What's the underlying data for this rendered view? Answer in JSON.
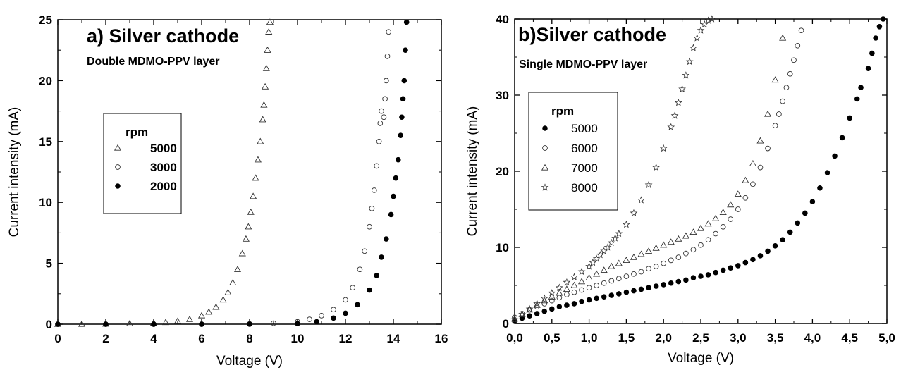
{
  "chart_data": [
    {
      "type": "scatter",
      "title": "a) Silver cathode",
      "subtitle": "Double MDMO-PPV layer",
      "xlabel": "Voltage (V)",
      "ylabel": "Current intensity (mA)",
      "xlim": [
        0,
        16
      ],
      "ylim": [
        0,
        25
      ],
      "xticks": [
        "0",
        "2",
        "4",
        "6",
        "8",
        "10",
        "12",
        "14",
        "16"
      ],
      "yticks": [
        "0",
        "5",
        "10",
        "15",
        "20",
        "25"
      ],
      "legend_title": "rpm",
      "legend_position": "center-left",
      "grid": false,
      "series": [
        {
          "name": "5000",
          "marker": "open-triangle",
          "x": [
            0.0,
            1.0,
            2.0,
            3.0,
            4.0,
            4.5,
            5.0,
            5.5,
            6.0,
            6.3,
            6.6,
            6.9,
            7.1,
            7.3,
            7.5,
            7.7,
            7.85,
            7.95,
            8.05,
            8.15,
            8.25,
            8.35,
            8.45,
            8.55,
            8.6,
            8.65,
            8.7,
            8.75,
            8.8,
            8.85
          ],
          "y": [
            0.0,
            0.0,
            0.02,
            0.05,
            0.1,
            0.15,
            0.25,
            0.4,
            0.7,
            1.0,
            1.4,
            2.0,
            2.6,
            3.4,
            4.5,
            5.8,
            7.0,
            8.0,
            9.2,
            10.5,
            12.0,
            13.5,
            15.0,
            16.8,
            18.0,
            19.5,
            21.0,
            22.5,
            24.0,
            24.8
          ]
        },
        {
          "name": "3000",
          "marker": "open-circle",
          "x": [
            0.0,
            2.0,
            4.0,
            6.0,
            8.0,
            9.0,
            10.0,
            10.5,
            11.0,
            11.5,
            12.0,
            12.3,
            12.6,
            12.8,
            13.0,
            13.1,
            13.2,
            13.3,
            13.4,
            13.45,
            13.5,
            13.6,
            13.65,
            13.7,
            13.75,
            13.8
          ],
          "y": [
            0.0,
            0.0,
            0.0,
            0.0,
            0.02,
            0.08,
            0.2,
            0.4,
            0.7,
            1.2,
            2.0,
            3.0,
            4.5,
            6.0,
            8.0,
            9.5,
            11.0,
            13.0,
            15.0,
            16.5,
            17.5,
            17.0,
            18.5,
            20.0,
            22.0,
            24.0
          ]
        },
        {
          "name": "2000",
          "marker": "filled-circle",
          "x": [
            0.0,
            2.0,
            4.0,
            6.0,
            8.0,
            10.0,
            10.8,
            11.5,
            12.0,
            12.5,
            13.0,
            13.3,
            13.5,
            13.7,
            13.9,
            14.0,
            14.1,
            14.2,
            14.3,
            14.35,
            14.4,
            14.45,
            14.5,
            14.55
          ],
          "y": [
            0.0,
            0.0,
            0.0,
            0.0,
            0.0,
            0.05,
            0.2,
            0.5,
            0.9,
            1.6,
            2.8,
            4.0,
            5.5,
            7.0,
            9.0,
            10.5,
            12.0,
            13.5,
            15.5,
            17.0,
            18.5,
            20.0,
            22.5,
            24.8
          ]
        }
      ]
    },
    {
      "type": "scatter",
      "title": "b)Silver cathode",
      "subtitle": "Single MDMO-PPV layer",
      "xlabel": "Voltage (V)",
      "ylabel": "Current intensity (mA)",
      "xlim": [
        0,
        5
      ],
      "ylim": [
        0,
        40
      ],
      "xticks": [
        "0,0",
        "0,5",
        "1,0",
        "1,5",
        "2,0",
        "2,5",
        "3,0",
        "3,5",
        "4,0",
        "4,5",
        "5,0"
      ],
      "yticks": [
        "0",
        "10",
        "20",
        "30",
        "40"
      ],
      "legend_title": "rpm",
      "legend_position": "center-left",
      "grid": false,
      "series": [
        {
          "name": "5000",
          "marker": "filled-circle",
          "x": [
            0.0,
            0.1,
            0.2,
            0.3,
            0.4,
            0.5,
            0.6,
            0.7,
            0.8,
            0.9,
            1.0,
            1.1,
            1.2,
            1.3,
            1.4,
            1.5,
            1.6,
            1.7,
            1.8,
            1.9,
            2.0,
            2.1,
            2.2,
            2.3,
            2.4,
            2.5,
            2.6,
            2.7,
            2.8,
            2.9,
            3.0,
            3.1,
            3.2,
            3.3,
            3.4,
            3.5,
            3.6,
            3.7,
            3.8,
            3.9,
            4.0,
            4.1,
            4.2,
            4.3,
            4.4,
            4.5,
            4.6,
            4.65,
            4.75,
            4.8,
            4.85,
            4.9,
            4.95
          ],
          "y": [
            0.3,
            0.7,
            1.0,
            1.3,
            1.6,
            1.9,
            2.2,
            2.4,
            2.6,
            2.9,
            3.1,
            3.3,
            3.5,
            3.7,
            3.9,
            4.1,
            4.3,
            4.5,
            4.7,
            4.9,
            5.1,
            5.3,
            5.5,
            5.7,
            6.0,
            6.2,
            6.4,
            6.7,
            7.0,
            7.3,
            7.6,
            8.0,
            8.4,
            8.9,
            9.5,
            10.2,
            11.0,
            12.0,
            13.2,
            14.5,
            16.0,
            17.8,
            19.8,
            22.0,
            24.4,
            27.0,
            29.5,
            31.0,
            33.5,
            35.5,
            37.5,
            39.0,
            40.0
          ]
        },
        {
          "name": "6000",
          "marker": "open-circle",
          "x": [
            0.0,
            0.1,
            0.2,
            0.3,
            0.4,
            0.5,
            0.6,
            0.7,
            0.8,
            0.9,
            1.0,
            1.1,
            1.2,
            1.3,
            1.4,
            1.5,
            1.6,
            1.7,
            1.8,
            1.9,
            2.0,
            2.1,
            2.2,
            2.3,
            2.4,
            2.5,
            2.6,
            2.7,
            2.8,
            2.9,
            3.0,
            3.1,
            3.2,
            3.3,
            3.4,
            3.5,
            3.55,
            3.6,
            3.65,
            3.7,
            3.75,
            3.8,
            3.85
          ],
          "y": [
            0.8,
            1.3,
            1.8,
            2.2,
            2.6,
            3.0,
            3.4,
            3.8,
            4.1,
            4.4,
            4.7,
            5.0,
            5.3,
            5.6,
            5.9,
            6.2,
            6.5,
            6.8,
            7.2,
            7.5,
            7.9,
            8.3,
            8.7,
            9.2,
            9.7,
            10.3,
            11.0,
            11.8,
            12.7,
            13.7,
            15.0,
            16.5,
            18.3,
            20.5,
            23.0,
            26.0,
            27.5,
            29.2,
            31.0,
            32.8,
            34.6,
            36.5,
            38.5
          ]
        },
        {
          "name": "7000",
          "marker": "open-triangle",
          "x": [
            0.0,
            0.1,
            0.2,
            0.3,
            0.4,
            0.5,
            0.6,
            0.7,
            0.8,
            0.9,
            1.0,
            1.1,
            1.2,
            1.3,
            1.4,
            1.5,
            1.6,
            1.7,
            1.8,
            1.9,
            2.0,
            2.1,
            2.2,
            2.3,
            2.4,
            2.5,
            2.6,
            2.7,
            2.8,
            2.9,
            3.0,
            3.1,
            3.2,
            3.3,
            3.4,
            3.5,
            3.6
          ],
          "y": [
            0.6,
            1.2,
            1.8,
            2.4,
            3.0,
            3.5,
            4.0,
            4.5,
            5.0,
            5.5,
            6.0,
            6.5,
            7.0,
            7.5,
            7.9,
            8.3,
            8.7,
            9.1,
            9.5,
            9.9,
            10.3,
            10.7,
            11.1,
            11.5,
            12.0,
            12.5,
            13.1,
            13.8,
            14.6,
            15.6,
            17.0,
            18.8,
            21.0,
            24.0,
            27.5,
            32.0,
            37.5
          ]
        },
        {
          "name": "8000",
          "marker": "open-star",
          "x": [
            0.0,
            0.1,
            0.2,
            0.3,
            0.4,
            0.5,
            0.6,
            0.7,
            0.8,
            0.9,
            1.0,
            1.05,
            1.1,
            1.15,
            1.2,
            1.25,
            1.3,
            1.35,
            1.4,
            1.5,
            1.6,
            1.7,
            1.8,
            1.9,
            2.0,
            2.1,
            2.15,
            2.2,
            2.25,
            2.3,
            2.35,
            2.4,
            2.45,
            2.5,
            2.55,
            2.6,
            2.65
          ],
          "y": [
            0.5,
            1.2,
            1.9,
            2.6,
            3.3,
            4.0,
            4.7,
            5.4,
            6.1,
            6.8,
            7.5,
            8.0,
            8.5,
            9.0,
            9.5,
            10.0,
            10.6,
            11.2,
            11.8,
            13.0,
            14.5,
            16.2,
            18.2,
            20.5,
            23.0,
            25.8,
            27.3,
            29.0,
            30.8,
            32.6,
            34.4,
            36.2,
            37.5,
            38.5,
            39.3,
            39.8,
            40.0
          ]
        }
      ]
    }
  ]
}
